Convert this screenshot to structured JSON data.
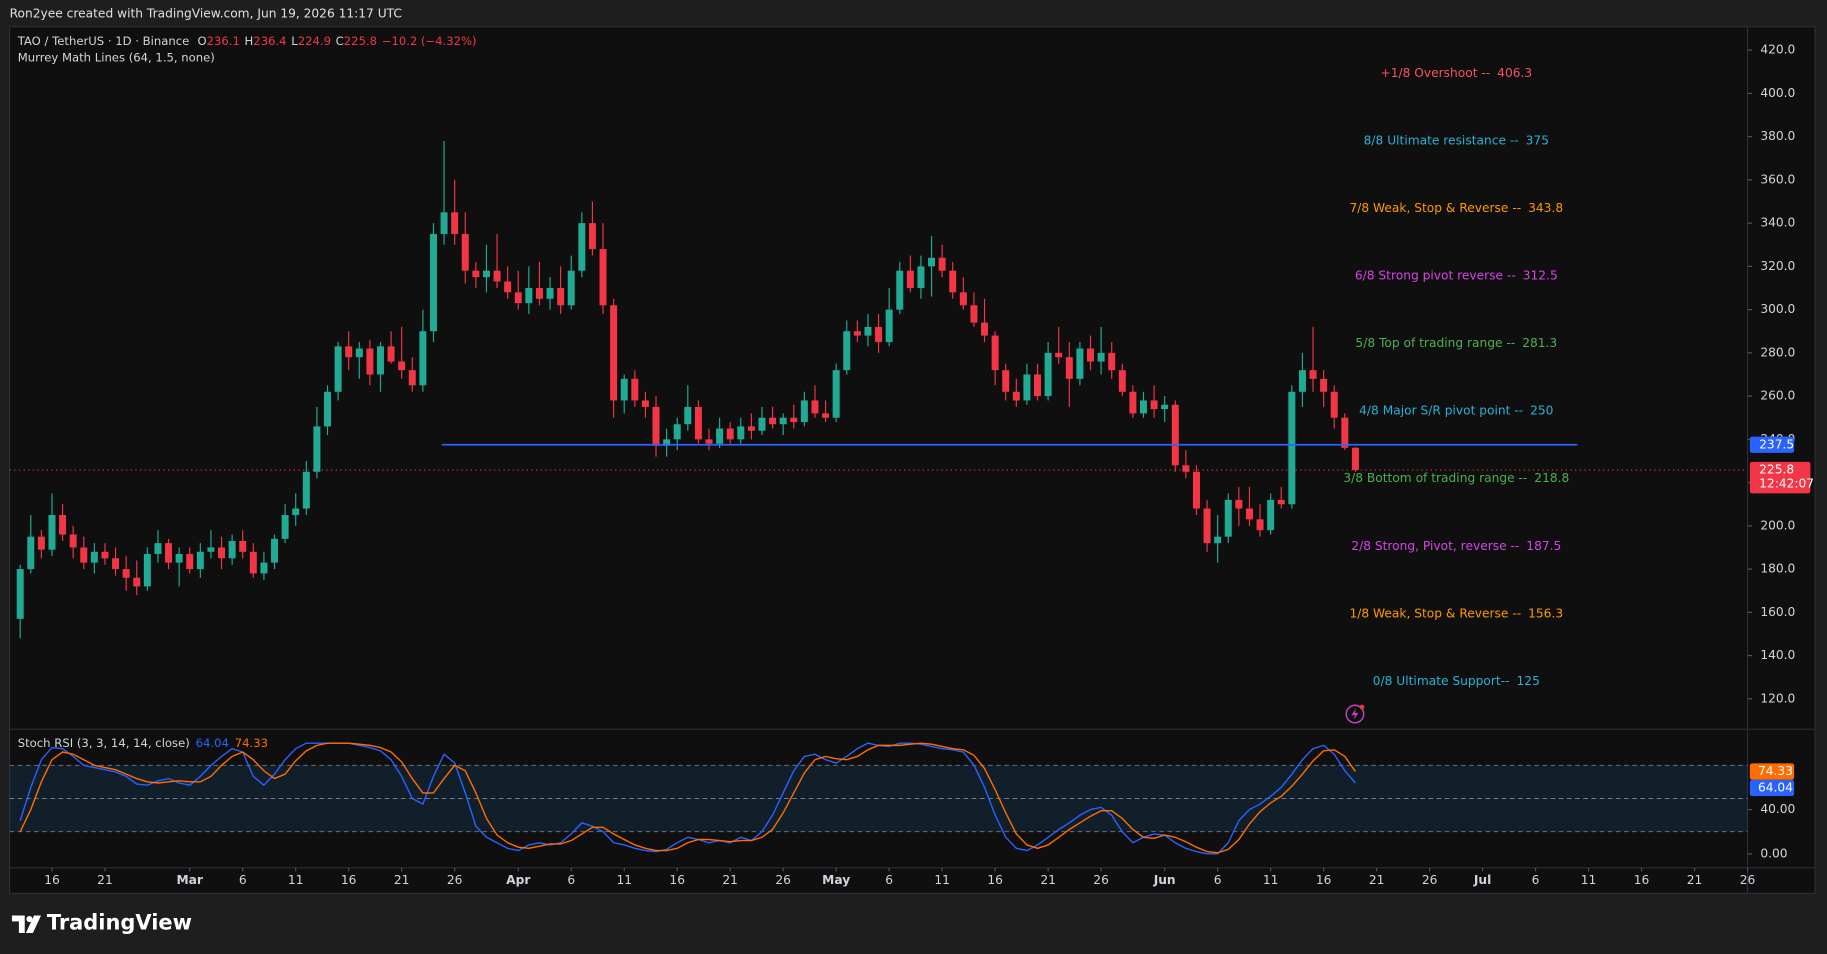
{
  "header": {
    "credit": "Ron2yee created with TradingView.com, Jun 19, 2026 11:17 UTC"
  },
  "footer": {
    "logo": "TradingView"
  },
  "chart_data": [
    {
      "type": "candlestick",
      "title": "TAO / TetherUS · 1D · Binance",
      "ohlc_labels": [
        "O",
        "H",
        "L",
        "C"
      ],
      "change": "−10.2",
      "change_pct": "(−4.32%)",
      "up_color": "#22ab94",
      "down_color": "#f23645",
      "x": [
        "2026-02-13",
        "2026-02-14",
        "2026-02-15",
        "2026-02-16",
        "2026-02-17",
        "2026-02-18",
        "2026-02-19",
        "2026-02-20",
        "2026-02-21",
        "2026-02-22",
        "2026-02-23",
        "2026-02-24",
        "2026-02-25",
        "2026-02-26",
        "2026-02-27",
        "2026-02-28",
        "2026-03-01",
        "2026-03-02",
        "2026-03-03",
        "2026-03-04",
        "2026-03-05",
        "2026-03-06",
        "2026-03-07",
        "2026-03-08",
        "2026-03-09",
        "2026-03-10",
        "2026-03-11",
        "2026-03-12",
        "2026-03-13",
        "2026-03-14",
        "2026-03-15",
        "2026-03-16",
        "2026-03-17",
        "2026-03-18",
        "2026-03-19",
        "2026-03-20",
        "2026-03-21",
        "2026-03-22",
        "2026-03-23",
        "2026-03-24",
        "2026-03-25",
        "2026-03-26",
        "2026-03-27",
        "2026-03-28",
        "2026-03-29",
        "2026-03-30",
        "2026-03-31",
        "2026-04-01",
        "2026-04-02",
        "2026-04-03",
        "2026-04-04",
        "2026-04-05",
        "2026-04-06",
        "2026-04-07",
        "2026-04-08",
        "2026-04-09",
        "2026-04-10",
        "2026-04-11",
        "2026-04-12",
        "2026-04-13",
        "2026-04-14",
        "2026-04-15",
        "2026-04-16",
        "2026-04-17",
        "2026-04-18",
        "2026-04-19",
        "2026-04-20",
        "2026-04-21",
        "2026-04-22",
        "2026-04-23",
        "2026-04-24",
        "2026-04-25",
        "2026-04-26",
        "2026-04-27",
        "2026-04-28",
        "2026-04-29",
        "2026-04-30",
        "2026-05-01",
        "2026-05-02",
        "2026-05-03",
        "2026-05-04",
        "2026-05-05",
        "2026-05-06",
        "2026-05-07",
        "2026-05-08",
        "2026-05-09",
        "2026-05-10",
        "2026-05-11",
        "2026-05-12",
        "2026-05-13",
        "2026-05-14",
        "2026-05-15",
        "2026-05-16",
        "2026-05-17",
        "2026-05-18",
        "2026-05-19",
        "2026-05-20",
        "2026-05-21",
        "2026-05-22",
        "2026-05-23",
        "2026-05-24",
        "2026-05-25",
        "2026-05-26",
        "2026-05-27",
        "2026-05-28",
        "2026-05-29",
        "2026-05-30",
        "2026-05-31",
        "2026-06-01",
        "2026-06-02",
        "2026-06-03",
        "2026-06-04",
        "2026-06-05",
        "2026-06-06",
        "2026-06-07",
        "2026-06-08",
        "2026-06-09",
        "2026-06-10",
        "2026-06-11",
        "2026-06-12",
        "2026-06-13",
        "2026-06-14",
        "2026-06-15",
        "2026-06-16",
        "2026-06-17",
        "2026-06-18",
        "2026-06-19"
      ],
      "open": [
        157,
        180,
        195,
        189,
        205,
        196,
        190,
        183,
        188,
        185,
        180,
        176,
        172,
        187,
        192,
        183,
        187,
        180,
        188,
        190,
        185,
        193,
        188,
        178,
        183,
        194,
        205,
        208,
        225,
        246,
        262,
        283,
        278,
        282,
        270,
        283,
        276,
        272,
        265,
        290,
        335,
        345,
        335,
        318,
        315,
        318,
        313,
        308,
        303,
        310,
        305,
        310,
        302,
        318,
        340,
        328,
        302,
        258,
        268,
        258,
        255,
        237,
        240,
        247,
        255,
        240,
        238,
        245,
        240,
        246,
        244,
        250,
        247,
        250,
        248,
        258,
        252,
        250,
        272,
        290,
        288,
        292,
        285,
        300,
        318,
        310,
        320,
        324,
        318,
        308,
        302,
        294,
        288,
        272,
        262,
        258,
        270,
        260,
        280,
        278,
        268,
        282,
        276,
        280,
        272,
        262,
        252,
        258,
        254,
        256,
        228,
        225,
        208,
        192,
        195,
        212,
        208,
        203,
        198,
        212,
        210,
        262,
        272,
        268,
        262,
        250,
        236.1
      ],
      "high": [
        182,
        205,
        198,
        215,
        210,
        200,
        195,
        192,
        192,
        190,
        186,
        184,
        190,
        198,
        194,
        190,
        190,
        192,
        198,
        195,
        196,
        198,
        192,
        188,
        196,
        210,
        215,
        230,
        255,
        265,
        285,
        290,
        285,
        286,
        285,
        290,
        292,
        278,
        300,
        340,
        378,
        360,
        345,
        322,
        330,
        335,
        320,
        318,
        320,
        322,
        315,
        320,
        325,
        345,
        350,
        340,
        305,
        270,
        272,
        262,
        260,
        245,
        250,
        265,
        258,
        245,
        250,
        248,
        250,
        252,
        255,
        255,
        252,
        256,
        262,
        265,
        258,
        275,
        295,
        295,
        298,
        298,
        310,
        322,
        325,
        325,
        334,
        330,
        322,
        315,
        308,
        305,
        290,
        275,
        268,
        275,
        275,
        285,
        292,
        285,
        285,
        288,
        292,
        285,
        275,
        265,
        262,
        265,
        260,
        258,
        235,
        228,
        212,
        205,
        215,
        218,
        218,
        210,
        215,
        218,
        265,
        280,
        292,
        272,
        265,
        252,
        236.4
      ],
      "low": [
        148,
        178,
        185,
        186,
        193,
        185,
        180,
        178,
        182,
        177,
        170,
        168,
        170,
        183,
        180,
        172,
        178,
        176,
        185,
        180,
        182,
        185,
        176,
        175,
        180,
        192,
        200,
        205,
        222,
        242,
        258,
        272,
        268,
        265,
        262,
        275,
        268,
        262,
        262,
        285,
        330,
        330,
        312,
        310,
        308,
        310,
        305,
        300,
        298,
        302,
        300,
        298,
        300,
        315,
        325,
        298,
        250,
        252,
        255,
        250,
        232,
        232,
        235,
        244,
        238,
        235,
        236,
        238,
        238,
        240,
        242,
        245,
        242,
        245,
        246,
        250,
        248,
        248,
        270,
        285,
        283,
        280,
        283,
        298,
        308,
        305,
        306,
        315,
        305,
        300,
        292,
        285,
        265,
        258,
        255,
        256,
        258,
        258,
        275,
        255,
        265,
        272,
        270,
        268,
        260,
        250,
        250,
        250,
        248,
        225,
        222,
        205,
        188,
        183,
        192,
        200,
        200,
        195,
        196,
        208,
        208,
        255,
        262,
        255,
        245,
        235,
        224.9
      ],
      "close": [
        180,
        195,
        189,
        205,
        196,
        190,
        183,
        188,
        185,
        180,
        176,
        172,
        187,
        192,
        183,
        187,
        180,
        188,
        190,
        185,
        193,
        188,
        178,
        183,
        194,
        205,
        208,
        225,
        246,
        262,
        283,
        278,
        282,
        270,
        283,
        276,
        272,
        265,
        290,
        335,
        345,
        335,
        318,
        315,
        318,
        313,
        308,
        303,
        310,
        305,
        310,
        302,
        318,
        340,
        328,
        302,
        258,
        268,
        258,
        255,
        237,
        240,
        247,
        255,
        240,
        238,
        245,
        240,
        246,
        244,
        250,
        247,
        250,
        248,
        258,
        252,
        250,
        272,
        290,
        288,
        292,
        285,
        300,
        318,
        310,
        320,
        324,
        318,
        308,
        302,
        294,
        288,
        272,
        262,
        258,
        270,
        260,
        280,
        278,
        268,
        282,
        276,
        280,
        272,
        262,
        252,
        258,
        254,
        256,
        228,
        225,
        208,
        192,
        195,
        212,
        208,
        203,
        198,
        212,
        210,
        262,
        272,
        268,
        262,
        250,
        236.1,
        225.8
      ],
      "countdown": "12:42:07",
      "xlim": [
        "2026-02-12",
        "2026-07-26"
      ],
      "xticks": [
        {
          "value": "2026-02-16",
          "label": "16"
        },
        {
          "value": "2026-02-21",
          "label": "21"
        },
        {
          "value": "2026-03-01",
          "label": "Mar"
        },
        {
          "value": "2026-03-06",
          "label": "6"
        },
        {
          "value": "2026-03-11",
          "label": "11"
        },
        {
          "value": "2026-03-16",
          "label": "16"
        },
        {
          "value": "2026-03-21",
          "label": "21"
        },
        {
          "value": "2026-03-26",
          "label": "26"
        },
        {
          "value": "2026-04-01",
          "label": "Apr"
        },
        {
          "value": "2026-04-06",
          "label": "6"
        },
        {
          "value": "2026-04-11",
          "label": "11"
        },
        {
          "value": "2026-04-16",
          "label": "16"
        },
        {
          "value": "2026-04-21",
          "label": "21"
        },
        {
          "value": "2026-04-26",
          "label": "26"
        },
        {
          "value": "2026-05-01",
          "label": "May"
        },
        {
          "value": "2026-05-06",
          "label": "6"
        },
        {
          "value": "2026-05-11",
          "label": "11"
        },
        {
          "value": "2026-05-16",
          "label": "16"
        },
        {
          "value": "2026-05-21",
          "label": "21"
        },
        {
          "value": "2026-05-26",
          "label": "26"
        },
        {
          "value": "2026-06-01",
          "label": "Jun"
        },
        {
          "value": "2026-06-06",
          "label": "6"
        },
        {
          "value": "2026-06-11",
          "label": "11"
        },
        {
          "value": "2026-06-16",
          "label": "16"
        },
        {
          "value": "2026-06-21",
          "label": "21"
        },
        {
          "value": "2026-06-26",
          "label": "26"
        },
        {
          "value": "2026-07-01",
          "label": "Jul"
        },
        {
          "value": "2026-07-06",
          "label": "6"
        },
        {
          "value": "2026-07-11",
          "label": "11"
        },
        {
          "value": "2026-07-16",
          "label": "16"
        },
        {
          "value": "2026-07-21",
          "label": "21"
        },
        {
          "value": "2026-07-26",
          "label": "26"
        }
      ],
      "ylim": [
        106.5,
        430.8
      ],
      "yticks": [
        {
          "value": 120,
          "label": "120.0"
        },
        {
          "value": 140,
          "label": "140.0"
        },
        {
          "value": 160,
          "label": "160.0"
        },
        {
          "value": 180,
          "label": "180.0"
        },
        {
          "value": 200,
          "label": "200.0"
        },
        {
          "value": 220,
          "label": "220.0"
        },
        {
          "value": 240,
          "label": "240.0"
        },
        {
          "value": 260,
          "label": "260.0"
        },
        {
          "value": 280,
          "label": "280.0"
        },
        {
          "value": 300,
          "label": "300.0"
        },
        {
          "value": 320,
          "label": "320.0"
        },
        {
          "value": 340,
          "label": "340.0"
        },
        {
          "value": 360,
          "label": "360.0"
        },
        {
          "value": 380,
          "label": "380.0"
        },
        {
          "value": 400,
          "label": "400.0"
        },
        {
          "value": 420,
          "label": "420.0"
        }
      ],
      "grid": false,
      "hline": {
        "value": 237.5,
        "color": "#2962ff"
      },
      "indicator": {
        "name": "Murrey Math Lines (64, 1.5, none)",
        "levels": [
          {
            "label": "+1/8 Overshoot --",
            "value": 406.3,
            "color": "#f7525f"
          },
          {
            "label": "8/8 Ultimate resistance --",
            "value": 375,
            "color": "#2ab0d6"
          },
          {
            "label": "7/8 Weak, Stop & Reverse --",
            "value": 343.8,
            "color": "#ff9800"
          },
          {
            "label": "6/8 Strong pivot reverse --",
            "value": 312.5,
            "color": "#d643e8"
          },
          {
            "label": "5/8 Top of trading range --",
            "value": 281.3,
            "color": "#4caf50"
          },
          {
            "label": "4/8 Major S/R pivot point --",
            "value": 250,
            "color": "#2ab0d6"
          },
          {
            "label": "3/8 Bottom of trading range --",
            "value": 218.8,
            "color": "#4caf50"
          },
          {
            "label": "2/8 Strong, Pivot, reverse --",
            "value": 187.5,
            "color": "#d643e8"
          },
          {
            "label": "1/8 Weak, Stop & Reverse --",
            "value": 156.3,
            "color": "#ff9800"
          },
          {
            "label": "0/8 Ultimate Support--",
            "value": 125,
            "color": "#2ab0d6"
          }
        ]
      }
    },
    {
      "type": "line",
      "title": "Stoch RSI (3, 3, 14, 14, close)",
      "series": [
        {
          "color": "#2962ff",
          "values": [
            30,
            60,
            85,
            96,
            95,
            88,
            80,
            78,
            76,
            74,
            70,
            63,
            62,
            66,
            68,
            64,
            62,
            70,
            80,
            88,
            95,
            92,
            70,
            62,
            72,
            85,
            95,
            100,
            100,
            100,
            100,
            100,
            98,
            96,
            93,
            85,
            70,
            50,
            45,
            70,
            90,
            82,
            55,
            25,
            15,
            10,
            5,
            3,
            8,
            10,
            8,
            10,
            18,
            28,
            25,
            20,
            10,
            8,
            5,
            3,
            2,
            4,
            10,
            15,
            13,
            10,
            12,
            10,
            15,
            12,
            20,
            35,
            55,
            75,
            88,
            90,
            85,
            82,
            88,
            95,
            100,
            98,
            97,
            100,
            100,
            99,
            97,
            95,
            94,
            92,
            80,
            60,
            35,
            15,
            5,
            3,
            8,
            15,
            22,
            28,
            35,
            40,
            42,
            35,
            20,
            10,
            15,
            18,
            17,
            10,
            5,
            2,
            0,
            0,
            10,
            30,
            40,
            45,
            52,
            60,
            72,
            85,
            95,
            98,
            90,
            75,
            64.04
          ]
        },
        {
          "color": "#ff6d00",
          "values": [
            20,
            40,
            65,
            85,
            92,
            90,
            85,
            80,
            78,
            76,
            72,
            68,
            65,
            64,
            65,
            66,
            65,
            65,
            70,
            80,
            88,
            92,
            85,
            75,
            68,
            72,
            84,
            93,
            98,
            100,
            100,
            100,
            99,
            98,
            96,
            92,
            83,
            68,
            55,
            55,
            68,
            80,
            75,
            55,
            32,
            17,
            10,
            6,
            5,
            7,
            9,
            9,
            12,
            18,
            24,
            24,
            18,
            13,
            8,
            5,
            3,
            3,
            5,
            10,
            13,
            13,
            12,
            11,
            12,
            12,
            15,
            22,
            37,
            55,
            73,
            85,
            88,
            86,
            85,
            88,
            94,
            98,
            98,
            98,
            99,
            100,
            99,
            97,
            95,
            94,
            89,
            77,
            58,
            37,
            18,
            8,
            5,
            8,
            15,
            22,
            28,
            34,
            39,
            39,
            32,
            22,
            15,
            14,
            17,
            15,
            11,
            6,
            2,
            1,
            4,
            13,
            27,
            38,
            46,
            52,
            61,
            72,
            84,
            93,
            94,
            88,
            74.33
          ]
        }
      ],
      "ylim": [
        -12.6,
        112.6
      ],
      "yticks": [
        {
          "value": 0,
          "label": "0.00"
        },
        {
          "value": 40,
          "label": "40.00"
        }
      ],
      "bands": [
        20,
        50,
        80
      ]
    }
  ]
}
